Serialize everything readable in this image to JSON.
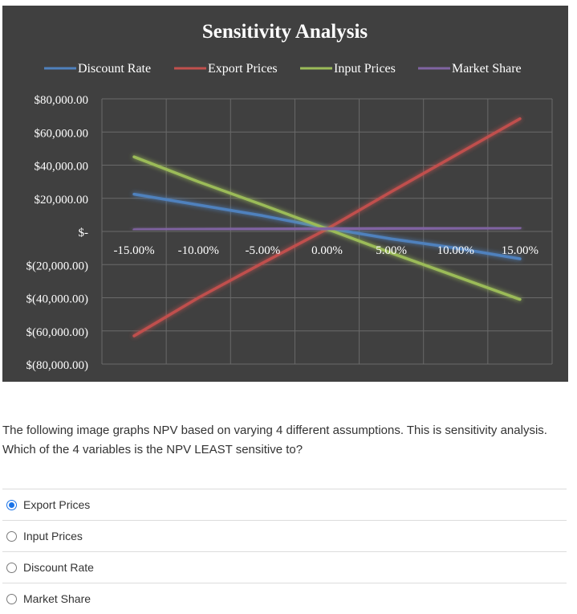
{
  "chart_data": {
    "type": "line",
    "title": "Sensitivity Analysis",
    "categories": [
      "-15.00%",
      "-10.00%",
      "-5.00%",
      "0.00%",
      "5.00%",
      "10.00%",
      "15.00%"
    ],
    "x": [
      -15,
      -10,
      -5,
      0,
      5,
      10,
      15
    ],
    "y_ticks": [
      80000,
      60000,
      40000,
      20000,
      0,
      -20000,
      -40000,
      -60000,
      -80000
    ],
    "y_tick_labels": [
      "$80,000.00",
      "$60,000.00",
      "$40,000.00",
      "$20,000.00",
      "$-",
      "$(20,000.00)",
      "$(40,000.00)",
      "$(60,000.00)",
      "$(80,000.00)"
    ],
    "ylim": [
      -80000,
      80000
    ],
    "grid": true,
    "legend_position": "top",
    "background": "#404040",
    "series": [
      {
        "name": "Discount Rate",
        "color": "#4f81bd",
        "values": [
          22500,
          16000,
          9500,
          2000,
          -4500,
          -10000,
          -16500
        ]
      },
      {
        "name": "Export Prices",
        "color": "#c0504d",
        "values": [
          -63000,
          -40000,
          -19000,
          1500,
          24000,
          46000,
          68000
        ]
      },
      {
        "name": "Input Prices",
        "color": "#9bbb59",
        "values": [
          45000,
          30000,
          16000,
          1500,
          -13000,
          -27000,
          -41000
        ]
      },
      {
        "name": "Market Share",
        "color": "#8064a2",
        "values": [
          1000,
          1200,
          1400,
          1600,
          1800,
          2000,
          2200
        ]
      }
    ]
  },
  "question": {
    "text": "The following image graphs NPV based on varying 4 different assumptions. This is sensitivity analysis. Which of the 4 variables is the NPV LEAST sensitive to?",
    "options": [
      {
        "label": "Export Prices",
        "selected": true
      },
      {
        "label": "Input Prices",
        "selected": false
      },
      {
        "label": "Discount Rate",
        "selected": false
      },
      {
        "label": "Market Share",
        "selected": false
      }
    ]
  }
}
